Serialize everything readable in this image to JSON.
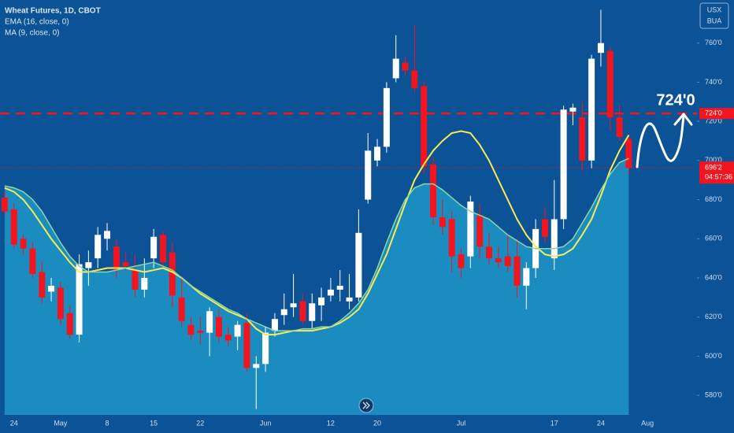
{
  "chart_data": {
    "type": "candlestick",
    "title": "Wheat Futures, 1D, CBOT",
    "corner_labels": [
      "USX",
      "BUA"
    ],
    "categories": [
      null,
      "24",
      null,
      null,
      null,
      null,
      "May",
      null,
      null,
      null,
      null,
      "8",
      null,
      null,
      null,
      null,
      "15",
      null,
      null,
      null,
      null,
      "22",
      null,
      null,
      null,
      null,
      null,
      null,
      "Jun",
      null,
      null,
      null,
      null,
      null,
      null,
      "12",
      null,
      null,
      null,
      null,
      "20",
      null,
      null,
      null,
      null,
      null,
      null,
      null,
      null,
      "Jul",
      null,
      null,
      null,
      null,
      null,
      null,
      null,
      null,
      null,
      "17",
      null,
      null,
      null,
      null,
      "24",
      null,
      null,
      null,
      null,
      "Aug"
    ],
    "open": [
      681,
      675,
      660,
      655,
      643,
      633,
      635,
      622,
      611,
      645,
      650,
      660,
      656,
      648,
      644,
      634,
      650,
      662,
      653,
      630,
      616,
      613,
      612,
      620,
      611,
      610,
      617,
      594,
      596,
      613,
      621,
      625,
      628,
      618,
      626,
      631,
      634,
      628,
      630,
      680,
      700,
      707,
      742,
      750,
      746,
      738,
      698,
      671,
      670,
      652,
      651,
      672,
      656,
      650,
      651,
      651,
      636,
      645,
      670,
      650,
      670,
      725,
      722,
      700,
      755,
      756,
      722,
      711,
      null,
      null
    ],
    "high": [
      684,
      678,
      662,
      658,
      648,
      640,
      638,
      626,
      652,
      654,
      666,
      668,
      660,
      653,
      652,
      650,
      665,
      664,
      658,
      640,
      620,
      620,
      625,
      624,
      615,
      618,
      622,
      600,
      615,
      622,
      632,
      642,
      632,
      632,
      635,
      640,
      644,
      642,
      675,
      714,
      711,
      740,
      764,
      753,
      769,
      740,
      702,
      680,
      674,
      655,
      682,
      678,
      663,
      656,
      662,
      660,
      648,
      670,
      676,
      690,
      728,
      729,
      730,
      754,
      777,
      758,
      728,
      713,
      null,
      null
    ],
    "low": [
      672,
      655,
      652,
      640,
      627,
      628,
      616,
      609,
      607,
      636,
      645,
      654,
      640,
      644,
      630,
      630,
      645,
      646,
      625,
      615,
      608,
      606,
      600,
      607,
      605,
      603,
      592,
      573,
      592,
      610,
      616,
      620,
      616,
      614,
      618,
      628,
      628,
      624,
      628,
      678,
      697,
      704,
      740,
      743,
      735,
      693,
      667,
      662,
      643,
      640,
      645,
      650,
      647,
      645,
      643,
      630,
      624,
      640,
      658,
      644,
      665,
      718,
      695,
      696,
      748,
      715,
      710,
      693,
      null,
      null
    ],
    "close": [
      674,
      657,
      655,
      642,
      630,
      636,
      619,
      611,
      647,
      648,
      662,
      664,
      644,
      646,
      634,
      640,
      661,
      648,
      631,
      618,
      611,
      612,
      623,
      610,
      608,
      616,
      594,
      596,
      612,
      619,
      624,
      627,
      618,
      627,
      630,
      634,
      636,
      630,
      663,
      705,
      707,
      737,
      752,
      746,
      737,
      697,
      671,
      666,
      651,
      645,
      679,
      656,
      650,
      648,
      646,
      636,
      645,
      665,
      661,
      670,
      726,
      727,
      700,
      752,
      760,
      722,
      712,
      696.25,
      null,
      null
    ],
    "up_color": "#ffffff",
    "down_color": "#f2151f",
    "series": [
      {
        "name": "EMA (16, close, 0)",
        "color": "#f7ec55",
        "values": [
          686,
          684,
          680,
          674,
          667,
          660,
          654,
          648,
          643,
          643,
          644,
          645,
          645,
          645,
          644,
          643,
          644,
          645,
          643,
          640,
          636,
          632,
          629,
          626,
          623,
          621,
          619,
          614,
          611,
          611,
          612,
          613,
          613,
          613,
          614,
          615,
          617,
          620,
          624,
          632,
          642,
          652,
          665,
          678,
          690,
          698,
          705,
          710,
          714,
          715,
          714,
          708,
          700,
          690,
          680,
          670,
          662,
          656,
          652,
          651,
          652,
          655,
          662,
          670,
          682,
          695,
          705,
          713,
          null,
          null
        ]
      },
      {
        "name": "MA (9, close, 0)",
        "color": "#8ed6a6",
        "fill": "#1a8cbf",
        "values": [
          687,
          686,
          684,
          680,
          674,
          666,
          658,
          651,
          646,
          643,
          643,
          643,
          644,
          645,
          646,
          647,
          648,
          646,
          644,
          640,
          636,
          633,
          630,
          627,
          624,
          622,
          619,
          617,
          615,
          613,
          613,
          613,
          614,
          614,
          615,
          615,
          618,
          622,
          627,
          634,
          645,
          658,
          670,
          680,
          686,
          688,
          688,
          685,
          681,
          677,
          674,
          672,
          670,
          666,
          662,
          659,
          656,
          655,
          655,
          655,
          656,
          660,
          668,
          676,
          685,
          693,
          699,
          701,
          null,
          null
        ]
      }
    ],
    "ylim": [
      570,
      782
    ],
    "yticks": [
      {
        "value": 580,
        "label": "580'0"
      },
      {
        "value": 600,
        "label": "600'0"
      },
      {
        "value": 620,
        "label": "620'0"
      },
      {
        "value": 640,
        "label": "640'0"
      },
      {
        "value": 660,
        "label": "660'0"
      },
      {
        "value": 680,
        "label": "680'0"
      },
      {
        "value": 700,
        "label": "700'0"
      },
      {
        "value": 720,
        "label": "720'0"
      },
      {
        "value": 740,
        "label": "740'0"
      },
      {
        "value": 760,
        "label": "760'0"
      }
    ],
    "level": {
      "value": 724,
      "label": "724'0",
      "annotation": "724'0",
      "color": "#f2151f"
    },
    "last_price": {
      "value": 696.25,
      "label": "696'2",
      "countdown": "04:57:36"
    }
  }
}
